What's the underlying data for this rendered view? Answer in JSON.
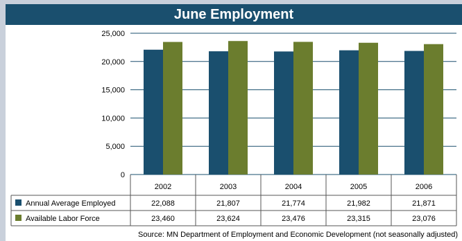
{
  "title": "June Employment",
  "source": "Source:  MN Department of Employment and Economic Development (not seasonally adjusted)",
  "colors": {
    "header": "#1a4f6e",
    "employed": "#1a4f6e",
    "labor": "#6b7d2e",
    "grid": "#1a4f6e"
  },
  "chart_data": {
    "type": "bar",
    "title": "June Employment",
    "categories": [
      "2002",
      "2003",
      "2004",
      "2005",
      "2006"
    ],
    "series": [
      {
        "name": "Annual Average Employed",
        "color": "#1a4f6e",
        "values": [
          22088,
          21807,
          21774,
          21982,
          21871
        ],
        "labels": [
          "22,088",
          "21,807",
          "21,774",
          "21,982",
          "21,871"
        ]
      },
      {
        "name": "Available Labor Force",
        "color": "#6b7d2e",
        "values": [
          23460,
          23624,
          23476,
          23315,
          23076
        ],
        "labels": [
          "23,460",
          "23,624",
          "23,476",
          "23,315",
          "23,076"
        ]
      }
    ],
    "ylim": [
      0,
      25000
    ],
    "yticks": [
      0,
      5000,
      10000,
      15000,
      20000,
      25000
    ],
    "ytick_labels": [
      "0",
      "5,000",
      "10,000",
      "15,000",
      "20,000",
      "25,000"
    ],
    "grid": true,
    "legend": "data table below chart"
  }
}
